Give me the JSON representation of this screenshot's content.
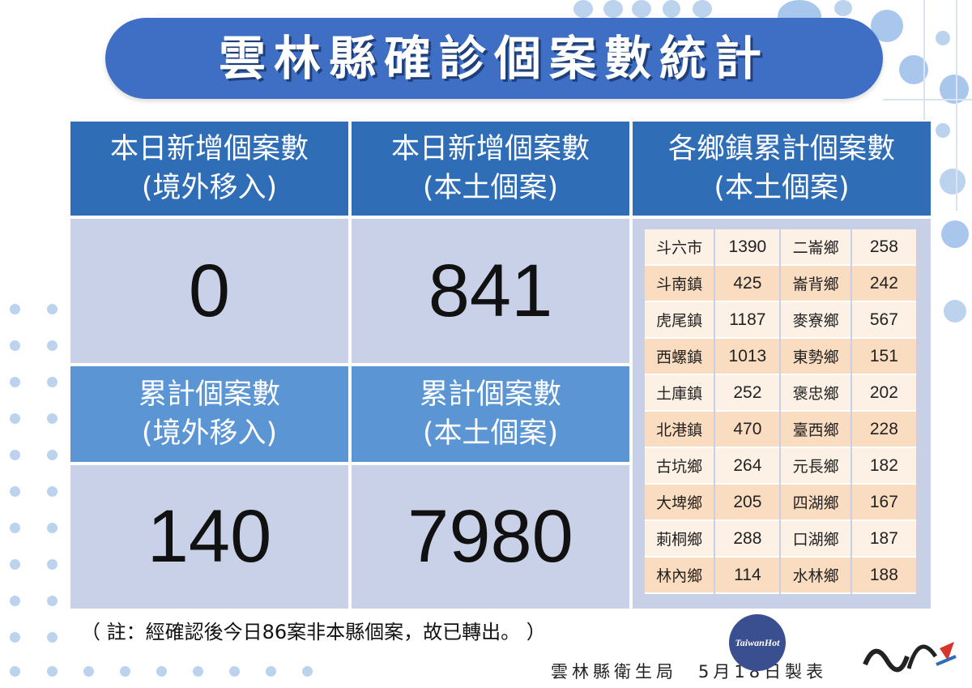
{
  "title": "雲林縣確診個案數統計",
  "cards": {
    "daily_imported": {
      "label_line1": "本日新增個案數",
      "label_line2": "(境外移入)",
      "value": "0"
    },
    "daily_local": {
      "label_line1": "本日新增個案數",
      "label_line2": "(本土個案)",
      "value": "841"
    },
    "cumulative_imported": {
      "label_line1": "累計個案數",
      "label_line2": "(境外移入)",
      "value": "140"
    },
    "cumulative_local": {
      "label_line1": "累計個案數",
      "label_line2": "(本土個案)",
      "value": "7980"
    }
  },
  "towns": {
    "header_line1": "各鄉鎮累計個案數",
    "header_line2": "(本土個案)",
    "rows": [
      {
        "a_name": "斗六市",
        "a_value": "1390",
        "b_name": "二崙鄉",
        "b_value": "258"
      },
      {
        "a_name": "斗南鎮",
        "a_value": "425",
        "b_name": "崙背鄉",
        "b_value": "242"
      },
      {
        "a_name": "虎尾鎮",
        "a_value": "1187",
        "b_name": "麥寮鄉",
        "b_value": "567"
      },
      {
        "a_name": "西螺鎮",
        "a_value": "1013",
        "b_name": "東勢鄉",
        "b_value": "151"
      },
      {
        "a_name": "土庫鎮",
        "a_value": "252",
        "b_name": "褒忠鄉",
        "b_value": "202"
      },
      {
        "a_name": "北港鎮",
        "a_value": "470",
        "b_name": "臺西鄉",
        "b_value": "228"
      },
      {
        "a_name": "古坑鄉",
        "a_value": "264",
        "b_name": "元長鄉",
        "b_value": "182"
      },
      {
        "a_name": "大埤鄉",
        "a_value": "205",
        "b_name": "四湖鄉",
        "b_value": "167"
      },
      {
        "a_name": "莿桐鄉",
        "a_value": "288",
        "b_name": "口湖鄉",
        "b_value": "187"
      },
      {
        "a_name": "林內鄉",
        "a_value": "114",
        "b_name": "水林鄉",
        "b_value": "188"
      }
    ]
  },
  "note": "（ 註：經確認後今日86案非本縣個案，故已轉出。 ）",
  "footer": "雲林縣衛生局　5月18日製表",
  "logos": {
    "left": "TaiwanHot",
    "right": "雲林"
  },
  "colors": {
    "banner": "#3f6fc4",
    "header_dark": "#2f6db6",
    "header_light": "#5b95d3",
    "value_bg": "#c9d1e8",
    "town_cell": "#fbe9d9"
  }
}
